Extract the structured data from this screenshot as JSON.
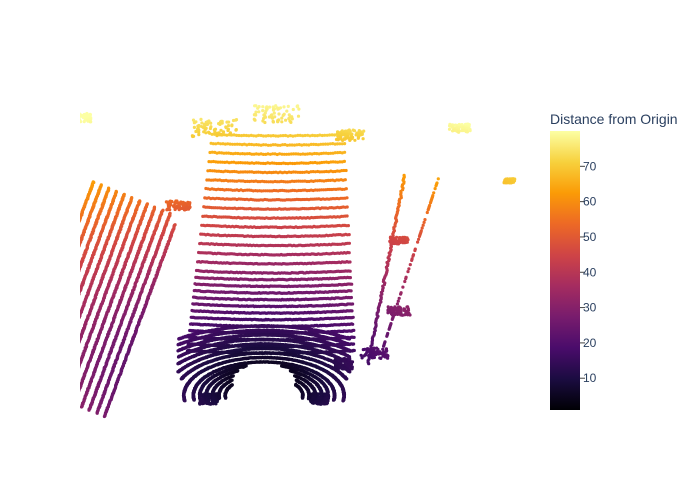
{
  "chart_data": {
    "type": "scatter",
    "title": "",
    "xlabel": "",
    "ylabel": "",
    "grid": false,
    "axes_visible": false,
    "colorscale": "inferno",
    "colorscale_stops": [
      "#000004",
      "#1b0c41",
      "#4a0c6b",
      "#781c6d",
      "#a52c60",
      "#cf4446",
      "#ed6925",
      "#fb9b06",
      "#f7d13d",
      "#fcffa4"
    ],
    "colorbar": {
      "title": "Distance from Origin",
      "range": [
        1,
        80
      ],
      "ticks": [
        10,
        20,
        30,
        40,
        50,
        60,
        70
      ],
      "tick_labels": [
        "10",
        "20",
        "30",
        "40",
        "50",
        "60",
        "70"
      ],
      "placement": "right"
    },
    "xlim": [
      -30,
      45
    ],
    "ylim": [
      -11,
      80
    ],
    "point_color_meaning": "distance from origin",
    "series": [
      {
        "values": "lidar point cloud in a scanned street corridor; points colored by distance from origin"
      }
    ]
  }
}
